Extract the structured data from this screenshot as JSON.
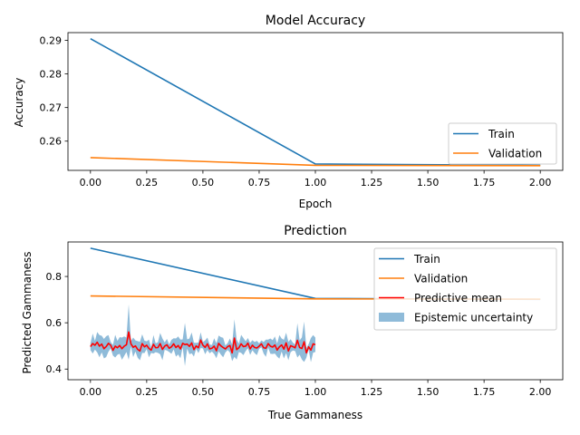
{
  "chart_data": [
    {
      "type": "line",
      "title": "Model Accuracy",
      "xlabel": "Epoch",
      "ylabel": "Accuracy",
      "xlim": [
        -0.1,
        2.1
      ],
      "ylim": [
        0.2513,
        0.2923
      ],
      "xticks": [
        0.0,
        0.25,
        0.5,
        0.75,
        1.0,
        1.25,
        1.5,
        1.75,
        2.0
      ],
      "xtick_labels": [
        "0.00",
        "0.25",
        "0.50",
        "0.75",
        "1.00",
        "1.25",
        "1.50",
        "1.75",
        "2.00"
      ],
      "yticks": [
        0.26,
        0.27,
        0.28,
        0.29
      ],
      "ytick_labels": [
        "0.26",
        "0.27",
        "0.28",
        "0.29"
      ],
      "grid": false,
      "legend": "lower right",
      "x": [
        0,
        1,
        2
      ],
      "series": [
        {
          "name": "Train",
          "color": "#1f77b4",
          "values": [
            0.2905,
            0.2532,
            0.2528
          ]
        },
        {
          "name": "Validation",
          "color": "#ff7f0e",
          "values": [
            0.2551,
            0.2528,
            0.2527
          ]
        }
      ]
    },
    {
      "type": "line",
      "title": "Prediction",
      "xlabel": "True Gammaness",
      "ylabel": "Predicted Gammaness",
      "xlim": [
        -0.1,
        2.1
      ],
      "ylim": [
        0.354,
        0.949
      ],
      "xticks": [
        0.0,
        0.25,
        0.5,
        0.75,
        1.0,
        1.25,
        1.5,
        1.75,
        2.0
      ],
      "xtick_labels": [
        "0.00",
        "0.25",
        "0.50",
        "0.75",
        "1.00",
        "1.25",
        "1.50",
        "1.75",
        "2.00"
      ],
      "yticks": [
        0.4,
        0.6,
        0.8
      ],
      "ytick_labels": [
        "0.4",
        "0.6",
        "0.8"
      ],
      "grid": false,
      "legend": "upper right",
      "x": [
        0,
        1,
        2
      ],
      "series": [
        {
          "name": "Train",
          "color": "#1f77b4",
          "values": [
            0.922,
            0.705,
            0.701
          ]
        },
        {
          "name": "Validation",
          "color": "#ff7f0e",
          "values": [
            0.716,
            0.703,
            0.702
          ]
        }
      ],
      "predictive_mean": {
        "name": "Predictive mean",
        "color": "#ff0000",
        "x_start": 0.0,
        "x_end": 1.0,
        "values": [
          0.497,
          0.51,
          0.503,
          0.516,
          0.499,
          0.508,
          0.488,
          0.497,
          0.511,
          0.503,
          0.481,
          0.499,
          0.492,
          0.502,
          0.488,
          0.499,
          0.505,
          0.56,
          0.509,
          0.494,
          0.5,
          0.485,
          0.478,
          0.51,
          0.496,
          0.503,
          0.489,
          0.482,
          0.507,
          0.492,
          0.493,
          0.51,
          0.485,
          0.499,
          0.505,
          0.49,
          0.496,
          0.509,
          0.493,
          0.502,
          0.487,
          0.511,
          0.506,
          0.508,
          0.498,
          0.513,
          0.484,
          0.5,
          0.492,
          0.525,
          0.503,
          0.494,
          0.509,
          0.487,
          0.49,
          0.499,
          0.479,
          0.511,
          0.5,
          0.493,
          0.487,
          0.497,
          0.502,
          0.47,
          0.534,
          0.484,
          0.492,
          0.509,
          0.497,
          0.499,
          0.512,
          0.487,
          0.503,
          0.493,
          0.491,
          0.499,
          0.509,
          0.492,
          0.49,
          0.51,
          0.499,
          0.495,
          0.504,
          0.482,
          0.496,
          0.504,
          0.486,
          0.513,
          0.478,
          0.501,
          0.497,
          0.492,
          0.524,
          0.493,
          0.489,
          0.518,
          0.47,
          0.496,
          0.482,
          0.509,
          0.505
        ]
      },
      "uncertainty": {
        "name": "Epistemic uncertainty",
        "color": "#1f77b4",
        "opacity": 0.5,
        "half_width": [
          0.015,
          0.043,
          0.019,
          0.044,
          0.048,
          0.036,
          0.042,
          0.045,
          0.036,
          0.014,
          0.023,
          0.049,
          0.03,
          0.036,
          0.048,
          0.042,
          0.031,
          0.12,
          0.012,
          0.042,
          0.024,
          0.036,
          0.04,
          0.04,
          0.027,
          0.017,
          0.038,
          0.012,
          0.04,
          0.019,
          0.023,
          0.046,
          0.047,
          0.016,
          0.025,
          0.016,
          0.03,
          0.024,
          0.039,
          0.039,
          0.04,
          0.017,
          0.093,
          0.02,
          0.034,
          0.045,
          0.03,
          0.013,
          0.023,
          0.034,
          0.014,
          0.03,
          0.027,
          0.019,
          0.014,
          0.034,
          0.032,
          0.034,
          0.038,
          0.042,
          0.015,
          0.015,
          0.03,
          0.036,
          0.081,
          0.043,
          0.018,
          0.039,
          0.037,
          0.021,
          0.022,
          0.026,
          0.022,
          0.024,
          0.031,
          0.012,
          0.015,
          0.025,
          0.037,
          0.017,
          0.033,
          0.03,
          0.037,
          0.028,
          0.051,
          0.028,
          0.04,
          0.044,
          0.04,
          0.028,
          0.017,
          0.014,
          0.074,
          0.031,
          0.048,
          0.087,
          0.021,
          0.012,
          0.052,
          0.038,
          0.031
        ]
      }
    }
  ]
}
